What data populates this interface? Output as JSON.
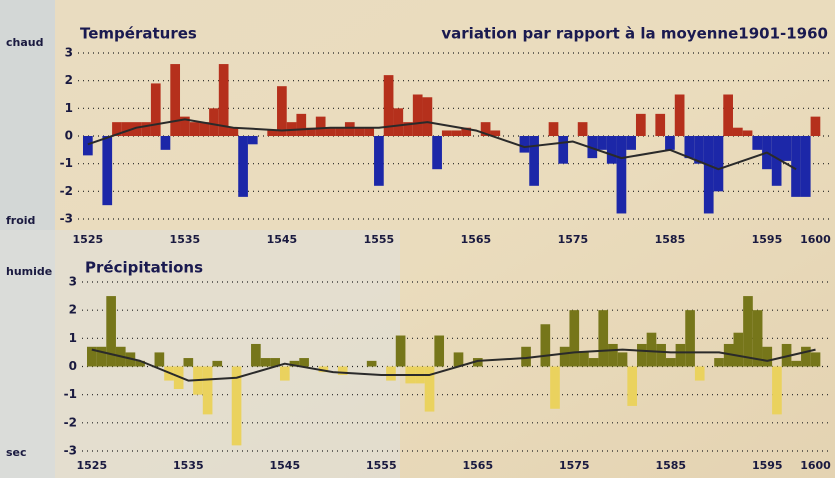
{
  "chart_data": [
    {
      "type": "bar",
      "title": "Températures",
      "subtitle": "variation par rapport à la moyenne1901-1960",
      "label_high": "chaud",
      "label_low": "froid",
      "x": [
        1525,
        1526,
        1527,
        1528,
        1529,
        1530,
        1531,
        1532,
        1533,
        1534,
        1535,
        1536,
        1537,
        1538,
        1539,
        1540,
        1541,
        1542,
        1543,
        1544,
        1545,
        1546,
        1547,
        1548,
        1549,
        1550,
        1551,
        1552,
        1553,
        1554,
        1555,
        1556,
        1557,
        1558,
        1559,
        1560,
        1561,
        1562,
        1563,
        1564,
        1565,
        1566,
        1567,
        1568,
        1569,
        1570,
        1571,
        1572,
        1573,
        1574,
        1575,
        1576,
        1577,
        1578,
        1579,
        1580,
        1581,
        1582,
        1583,
        1584,
        1585,
        1586,
        1587,
        1588,
        1589,
        1590,
        1591,
        1592,
        1593,
        1594,
        1595,
        1596,
        1597,
        1598,
        1599,
        1600
      ],
      "values": [
        -0.7,
        0,
        -2.5,
        0.5,
        0.5,
        0.5,
        0.5,
        1.9,
        -0.5,
        2.6,
        0.7,
        0.5,
        0.5,
        1.0,
        2.6,
        0.3,
        -2.2,
        -0.3,
        0,
        0.2,
        1.8,
        0.5,
        0.8,
        0.3,
        0.7,
        0.3,
        0.3,
        0.5,
        0.3,
        0.3,
        -1.8,
        2.2,
        1.0,
        0.5,
        1.5,
        1.4,
        -1.2,
        0.2,
        0.2,
        0.3,
        0,
        0.5,
        0.2,
        0,
        0,
        -0.6,
        -1.8,
        0,
        0.5,
        -1.0,
        0,
        0.5,
        -0.8,
        -0.5,
        -1.0,
        -2.8,
        -0.5,
        0.8,
        0,
        0.8,
        -0.5,
        1.5,
        -0.8,
        -1.0,
        -2.8,
        -2.0,
        1.5,
        0.3,
        0.2,
        -0.5,
        -1.2,
        -1.8,
        -0.9,
        -2.2,
        -2.2,
        0.7
      ],
      "color_positive": "#b5301c",
      "color_negative": "#1c27a8",
      "trend": {
        "x": [
          1525,
          1530,
          1535,
          1540,
          1545,
          1550,
          1555,
          1560,
          1565,
          1570,
          1575,
          1580,
          1585,
          1590,
          1595,
          1598
        ],
        "values": [
          -0.3,
          0.3,
          0.6,
          0.3,
          0.2,
          0.3,
          0.3,
          0.5,
          0.2,
          -0.4,
          -0.2,
          -0.8,
          -0.5,
          -1.2,
          -0.6,
          -1.2
        ],
        "color": "#2a2a2a"
      },
      "xlim": [
        1524.5,
        1601.5
      ],
      "xticks": [
        1525,
        1535,
        1545,
        1555,
        1565,
        1575,
        1585,
        1595,
        1600
      ],
      "ylim": [
        -3,
        3
      ],
      "yticks": [
        3,
        2,
        1,
        0,
        -1,
        -2,
        -3
      ],
      "grid": true
    },
    {
      "type": "bar",
      "title": "Précipitations",
      "label_high": "humide",
      "label_low": "sec",
      "x": [
        1525,
        1526,
        1527,
        1528,
        1529,
        1530,
        1531,
        1532,
        1533,
        1534,
        1535,
        1536,
        1537,
        1538,
        1539,
        1540,
        1541,
        1542,
        1543,
        1544,
        1545,
        1546,
        1547,
        1548,
        1549,
        1550,
        1551,
        1552,
        1553,
        1554,
        1555,
        1556,
        1557,
        1558,
        1559,
        1560,
        1561,
        1562,
        1563,
        1564,
        1565,
        1566,
        1567,
        1568,
        1569,
        1570,
        1571,
        1572,
        1573,
        1574,
        1575,
        1576,
        1577,
        1578,
        1579,
        1580,
        1581,
        1582,
        1583,
        1584,
        1585,
        1586,
        1587,
        1588,
        1589,
        1590,
        1591,
        1592,
        1593,
        1594,
        1595,
        1596,
        1597,
        1598,
        1599,
        1600
      ],
      "values": [
        0.7,
        0.7,
        2.5,
        0.7,
        0.5,
        0.2,
        0,
        0.5,
        -0.5,
        -0.8,
        0.3,
        -1.0,
        -1.7,
        0.2,
        0,
        -2.8,
        0,
        0.8,
        0.3,
        0.3,
        -0.5,
        0.2,
        0.3,
        0,
        -0.2,
        0,
        -0.3,
        0,
        0,
        0.2,
        0,
        -0.5,
        1.1,
        -0.6,
        -0.6,
        -1.6,
        1.1,
        0,
        0.5,
        0,
        0.3,
        0,
        0,
        0,
        0,
        0.7,
        0,
        1.5,
        -1.5,
        0.7,
        2.0,
        0.5,
        0.3,
        2.0,
        0.8,
        0.5,
        -1.4,
        0.8,
        1.2,
        0.8,
        0.3,
        0.8,
        2.0,
        -0.5,
        0,
        0.3,
        0.8,
        1.2,
        2.5,
        2.0,
        0.7,
        -1.7,
        0.8,
        0.2,
        0.7,
        0.5
      ],
      "color_positive": "#76761a",
      "color_negative": "#ead25e",
      "trend": {
        "x": [
          1525,
          1530,
          1535,
          1540,
          1545,
          1550,
          1555,
          1560,
          1565,
          1570,
          1575,
          1580,
          1585,
          1590,
          1595,
          1600
        ],
        "values": [
          0.6,
          0.2,
          -0.5,
          -0.4,
          0.1,
          -0.2,
          -0.3,
          -0.3,
          0.2,
          0.3,
          0.5,
          0.6,
          0.5,
          0.5,
          0.2,
          0.6
        ],
        "color": "#2a2a2a"
      },
      "xlim": [
        1524.5,
        1601.5
      ],
      "xticks": [
        1525,
        1535,
        1545,
        1555,
        1565,
        1575,
        1585,
        1595,
        1600
      ],
      "ylim": [
        -3,
        3
      ],
      "yticks": [
        3,
        2,
        1,
        0,
        -1,
        -2,
        -3
      ],
      "grid": true
    }
  ]
}
